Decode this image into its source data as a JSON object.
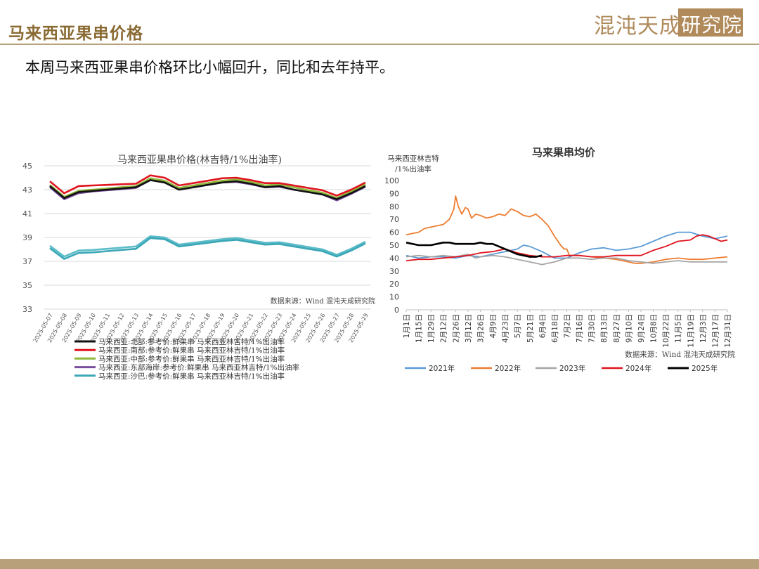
{
  "header": {
    "title": "马来西亚果串价格",
    "logo_main": "混沌天成",
    "logo_box": "研究院"
  },
  "summary": "本周马来西亚果串价格环比小幅回升，同比和去年持平。",
  "colors": {
    "brand": "#8a6a33",
    "rule": "#b8a07a",
    "north": "#111111",
    "south": "#e0141e",
    "central": "#8fb83c",
    "east": "#7a4fa0",
    "sabah": "#3aa6b6",
    "y2021": "#5b9bd5",
    "y2022": "#ed7d31",
    "y2023": "#a5a5a5",
    "y2024": "#e0141e",
    "y2025": "#000000"
  },
  "chart_data": [
    {
      "type": "line",
      "title": "马来西亚果串价格(林吉特/1%出油率)",
      "source": "数据来源：Wind 混沌天成研究院",
      "ylim": [
        33,
        45
      ],
      "yticks": [
        33,
        35,
        37,
        39,
        41,
        43,
        45
      ],
      "grid": true,
      "legend_position": "bottom",
      "categories": [
        "2025-05-07",
        "2025-05-08",
        "2025-05-09",
        "2025-05-10",
        "2025-05-11",
        "2025-05-12",
        "2025-05-13",
        "2025-05-14",
        "2025-05-15",
        "2025-05-16",
        "2025-05-17",
        "2025-05-18",
        "2025-05-19",
        "2025-05-20",
        "2025-05-21",
        "2025-05-22",
        "2025-05-23",
        "2025-05-24",
        "2025-05-25",
        "2025-05-26",
        "2025-05-27",
        "2025-05-28",
        "2025-05-29"
      ],
      "series": [
        {
          "name": "马来西亚:北部:参考价:鲜果串 马来西亚林吉特/1%出油率",
          "color_key": "north",
          "values": [
            43.3,
            42.3,
            42.8,
            42.9,
            43.0,
            43.1,
            43.2,
            43.8,
            43.6,
            43.0,
            43.2,
            43.4,
            43.6,
            43.7,
            43.5,
            43.2,
            43.3,
            43.0,
            42.8,
            42.6,
            42.2,
            42.7,
            43.3
          ]
        },
        {
          "name": "马来西亚:南部:参考价:鲜果串 马来西亚林吉特/1%出油率",
          "color_key": "south",
          "values": [
            43.7,
            42.7,
            43.3,
            43.35,
            43.4,
            43.45,
            43.5,
            44.2,
            44.0,
            43.35,
            43.55,
            43.75,
            43.95,
            44.0,
            43.8,
            43.55,
            43.55,
            43.35,
            43.15,
            42.95,
            42.5,
            43.0,
            43.6
          ]
        },
        {
          "name": "马来西亚:中部:参考价:鲜果串 马来西亚林吉特/1%出油率",
          "color_key": "central",
          "values": [
            43.4,
            42.4,
            42.9,
            43.0,
            43.1,
            43.2,
            43.3,
            43.95,
            43.75,
            43.15,
            43.35,
            43.55,
            43.75,
            43.85,
            43.65,
            43.35,
            43.45,
            43.2,
            42.95,
            42.75,
            42.3,
            42.85,
            43.45
          ]
        },
        {
          "name": "马来西亚:东部海岸:参考价:鲜果串 马来西亚林吉特/1%出油率",
          "color_key": "east",
          "values": [
            43.2,
            42.2,
            42.7,
            42.85,
            42.95,
            43.05,
            43.15,
            43.8,
            43.6,
            43.0,
            43.2,
            43.4,
            43.6,
            43.65,
            43.45,
            43.2,
            43.25,
            43.0,
            42.8,
            42.6,
            42.1,
            42.65,
            43.25
          ]
        },
        {
          "name": "马来西亚:沙巴:参考价:鲜果串 马来西亚林吉特/1%出油率",
          "color_key": "sabah",
          "values": [
            38.1,
            37.2,
            37.7,
            37.75,
            37.85,
            37.95,
            38.05,
            38.95,
            38.85,
            38.25,
            38.4,
            38.55,
            38.7,
            38.8,
            38.6,
            38.4,
            38.45,
            38.25,
            38.05,
            37.85,
            37.4,
            37.9,
            38.5
          ]
        },
        {
          "name": "",
          "color_key": "sabah_overlay",
          "hidden_legend": true,
          "values": [
            38.3,
            37.4,
            37.9,
            37.95,
            38.05,
            38.15,
            38.25,
            39.1,
            39.0,
            38.4,
            38.55,
            38.7,
            38.85,
            38.95,
            38.75,
            38.55,
            38.6,
            38.4,
            38.2,
            38.0,
            37.55,
            38.05,
            38.65
          ]
        }
      ]
    },
    {
      "type": "line",
      "title": "马来果串均价",
      "ylabel": "马来西亚林吉特\n/1%出油率",
      "source": "数据来源：Wind 混沌天成研究院",
      "ylim": [
        0,
        100
      ],
      "yticks": [
        0,
        10,
        20,
        30,
        40,
        50,
        60,
        70,
        80,
        90,
        100
      ],
      "grid": false,
      "legend_position": "bottom",
      "xlim": [
        1,
        365
      ],
      "x_tick_labels": [
        "1月1日",
        "1月15日",
        "1月29日",
        "2月12日",
        "2月26日",
        "3月12日",
        "3月26日",
        "4月9日",
        "4月23日",
        "5月7日",
        "5月21日",
        "6月4日",
        "6月18日",
        "7月2日",
        "7月16日",
        "7月30日",
        "8月13日",
        "8月27日",
        "9月10日",
        "9月24日",
        "10月8日",
        "10月22日",
        "11月5日",
        "11月19日",
        "12月3日",
        "12月17日",
        "12月31日"
      ],
      "x_tick_days": [
        1,
        15,
        29,
        43,
        57,
        71,
        85,
        99,
        113,
        127,
        141,
        155,
        169,
        183,
        197,
        211,
        225,
        239,
        253,
        267,
        281,
        295,
        309,
        323,
        337,
        351,
        365
      ],
      "series": [
        {
          "name": "2021年",
          "color_key": "y2021",
          "points": [
            [
              1,
              42
            ],
            [
              15,
              40
            ],
            [
              29,
              41
            ],
            [
              43,
              41
            ],
            [
              57,
              40
            ],
            [
              71,
              42
            ],
            [
              85,
              41
            ],
            [
              99,
              43
            ],
            [
              113,
              45
            ],
            [
              127,
              47
            ],
            [
              134,
              50
            ],
            [
              141,
              49
            ],
            [
              155,
              45
            ],
            [
              169,
              40
            ],
            [
              183,
              40
            ],
            [
              190,
              42
            ],
            [
              197,
              44
            ],
            [
              211,
              47
            ],
            [
              225,
              48
            ],
            [
              239,
              46
            ],
            [
              253,
              47
            ],
            [
              267,
              49
            ],
            [
              281,
              53
            ],
            [
              295,
              57
            ],
            [
              309,
              60
            ],
            [
              323,
              60
            ],
            [
              337,
              57
            ],
            [
              351,
              55
            ],
            [
              365,
              57
            ]
          ]
        },
        {
          "name": "2022年",
          "color_key": "y2022",
          "points": [
            [
              1,
              58
            ],
            [
              8,
              59
            ],
            [
              15,
              60
            ],
            [
              22,
              63
            ],
            [
              29,
              64
            ],
            [
              36,
              65
            ],
            [
              43,
              66
            ],
            [
              50,
              70
            ],
            [
              55,
              78
            ],
            [
              57,
              88
            ],
            [
              60,
              80
            ],
            [
              64,
              74
            ],
            [
              68,
              79
            ],
            [
              71,
              78
            ],
            [
              75,
              71
            ],
            [
              80,
              74
            ],
            [
              85,
              73
            ],
            [
              92,
              71
            ],
            [
              99,
              72
            ],
            [
              106,
              74
            ],
            [
              113,
              73
            ],
            [
              120,
              78
            ],
            [
              127,
              76
            ],
            [
              134,
              73
            ],
            [
              141,
              72
            ],
            [
              148,
              74
            ],
            [
              155,
              70
            ],
            [
              162,
              65
            ],
            [
              169,
              57
            ],
            [
              176,
              50
            ],
            [
              180,
              47
            ],
            [
              183,
              47
            ],
            [
              186,
              42
            ],
            [
              190,
              42
            ],
            [
              197,
              42
            ],
            [
              211,
              41
            ],
            [
              225,
              40
            ],
            [
              239,
              39
            ],
            [
              253,
              37
            ],
            [
              260,
              36
            ],
            [
              267,
              36
            ],
            [
              281,
              37
            ],
            [
              295,
              39
            ],
            [
              309,
              40
            ],
            [
              323,
              39
            ],
            [
              337,
              39
            ],
            [
              351,
              40
            ],
            [
              365,
              41
            ]
          ]
        },
        {
          "name": "2023年",
          "color_key": "y2023",
          "points": [
            [
              1,
              41
            ],
            [
              15,
              42
            ],
            [
              29,
              41
            ],
            [
              43,
              42
            ],
            [
              57,
              41
            ],
            [
              71,
              43
            ],
            [
              80,
              40
            ],
            [
              85,
              41
            ],
            [
              99,
              42
            ],
            [
              113,
              41
            ],
            [
              127,
              39
            ],
            [
              141,
              37
            ],
            [
              155,
              35
            ],
            [
              169,
              37
            ],
            [
              183,
              40
            ],
            [
              197,
              40
            ],
            [
              211,
              39
            ],
            [
              225,
              40
            ],
            [
              239,
              40
            ],
            [
              253,
              38
            ],
            [
              267,
              37
            ],
            [
              281,
              36
            ],
            [
              295,
              37
            ],
            [
              309,
              38
            ],
            [
              323,
              37
            ],
            [
              337,
              37
            ],
            [
              351,
              37
            ],
            [
              365,
              37
            ]
          ]
        },
        {
          "name": "2024年",
          "color_key": "y2024",
          "points": [
            [
              1,
              38
            ],
            [
              15,
              39
            ],
            [
              29,
              39
            ],
            [
              43,
              40
            ],
            [
              57,
              41
            ],
            [
              71,
              42
            ],
            [
              85,
              44
            ],
            [
              99,
              45
            ],
            [
              113,
              47
            ],
            [
              127,
              44
            ],
            [
              141,
              42
            ],
            [
              155,
              41
            ],
            [
              169,
              41
            ],
            [
              183,
              42
            ],
            [
              197,
              42
            ],
            [
              211,
              41
            ],
            [
              225,
              41
            ],
            [
              239,
              42
            ],
            [
              253,
              42
            ],
            [
              267,
              42
            ],
            [
              281,
              46
            ],
            [
              295,
              49
            ],
            [
              309,
              53
            ],
            [
              323,
              54
            ],
            [
              330,
              57
            ],
            [
              337,
              58
            ],
            [
              344,
              57
            ],
            [
              351,
              55
            ],
            [
              358,
              53
            ],
            [
              365,
              54
            ]
          ]
        },
        {
          "name": "2025年",
          "color_key": "y2025",
          "points": [
            [
              1,
              52
            ],
            [
              8,
              51
            ],
            [
              15,
              50
            ],
            [
              22,
              50
            ],
            [
              29,
              50
            ],
            [
              36,
              51
            ],
            [
              43,
              52
            ],
            [
              50,
              52
            ],
            [
              57,
              51
            ],
            [
              64,
              51
            ],
            [
              71,
              51
            ],
            [
              78,
              51
            ],
            [
              85,
              52
            ],
            [
              92,
              51
            ],
            [
              99,
              51
            ],
            [
              106,
              49
            ],
            [
              113,
              47
            ],
            [
              120,
              45
            ],
            [
              127,
              43
            ],
            [
              134,
              42
            ],
            [
              141,
              41
            ],
            [
              148,
              41
            ],
            [
              155,
              42
            ]
          ]
        }
      ]
    }
  ]
}
